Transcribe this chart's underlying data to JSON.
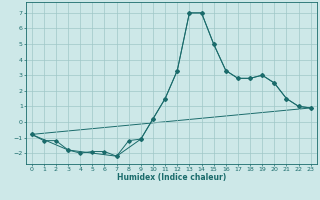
{
  "xlabel": "Humidex (Indice chaleur)",
  "xlim": [
    -0.5,
    23.5
  ],
  "ylim": [
    -2.7,
    7.7
  ],
  "yticks": [
    -2,
    -1,
    0,
    1,
    2,
    3,
    4,
    5,
    6,
    7
  ],
  "xticks": [
    0,
    1,
    2,
    3,
    4,
    5,
    6,
    7,
    8,
    9,
    10,
    11,
    12,
    13,
    14,
    15,
    16,
    17,
    18,
    19,
    20,
    21,
    22,
    23
  ],
  "background_color": "#cde8e8",
  "grid_color": "#a0c8c8",
  "line_color": "#1a6b6b",
  "line1_x": [
    0,
    1,
    2,
    3,
    4,
    5,
    6,
    7,
    8,
    9,
    10,
    11,
    12,
    13,
    14,
    15,
    16,
    17,
    18,
    19,
    20,
    21,
    22,
    23
  ],
  "line1_y": [
    -0.8,
    -1.2,
    -1.2,
    -1.8,
    -2.0,
    -1.9,
    -1.9,
    -2.2,
    -1.2,
    -1.1,
    0.2,
    1.5,
    3.3,
    7.0,
    7.0,
    5.0,
    3.3,
    2.8,
    2.8,
    3.0,
    2.5,
    1.5,
    1.0,
    0.9
  ],
  "line2_x": [
    0,
    3,
    7,
    9,
    10,
    11,
    12,
    13,
    14,
    15,
    16,
    17,
    18,
    19,
    20,
    21,
    22,
    23
  ],
  "line2_y": [
    -0.8,
    -1.8,
    -2.2,
    -1.1,
    0.2,
    1.5,
    3.3,
    7.0,
    7.0,
    5.0,
    3.3,
    2.8,
    2.8,
    3.0,
    2.5,
    1.5,
    1.0,
    0.9
  ],
  "line3_x": [
    0,
    23
  ],
  "line3_y": [
    -0.8,
    0.9
  ]
}
